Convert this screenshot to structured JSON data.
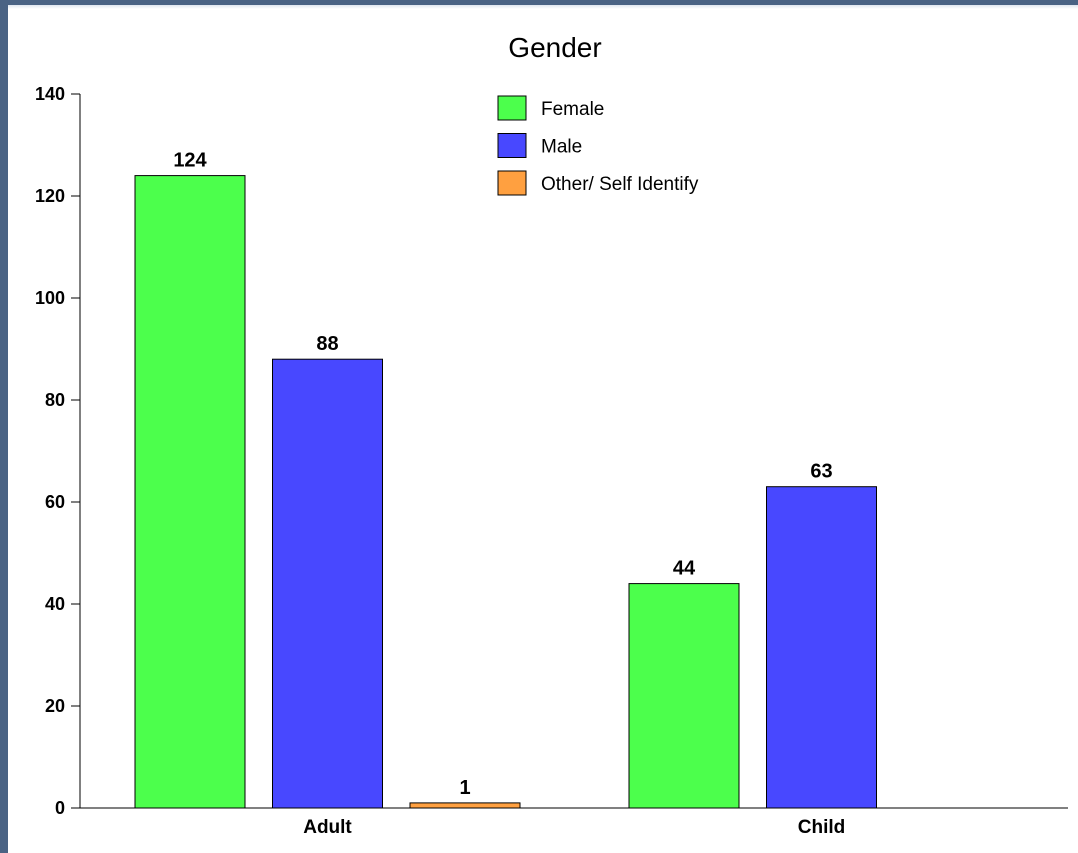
{
  "chart_data": {
    "type": "bar",
    "title": "Gender",
    "xlabel": "",
    "ylabel": "",
    "categories": [
      "Adult",
      "Child"
    ],
    "series": [
      {
        "name": "Female",
        "color": "#4cff4c",
        "values": [
          124,
          44
        ]
      },
      {
        "name": "Male",
        "color": "#4848ff",
        "values": [
          88,
          63
        ]
      },
      {
        "name": "Other/ Self Identify",
        "color": "#ffa040",
        "values": [
          1,
          null
        ]
      }
    ],
    "ylim": [
      0,
      140
    ],
    "yticks": [
      0,
      20,
      40,
      60,
      80,
      100,
      120,
      140
    ],
    "grid": false,
    "legend_position": "top-center"
  }
}
